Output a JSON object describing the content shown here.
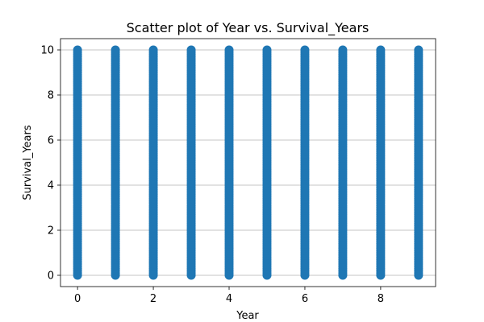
{
  "chart_data": {
    "type": "scatter",
    "title": "Scatter plot of Year vs. Survival_Years",
    "xlabel": "Year",
    "ylabel": "Survival_Years",
    "xlim": [
      -0.45,
      9.45
    ],
    "ylim": [
      -0.5,
      10.5
    ],
    "xticks": [
      0,
      2,
      4,
      6,
      8
    ],
    "xtick_labels": [
      "0",
      "2",
      "4",
      "6",
      "8"
    ],
    "yticks": [
      0,
      2,
      4,
      6,
      8,
      10
    ],
    "ytick_labels": [
      "0",
      "2",
      "4",
      "6",
      "8",
      "10"
    ],
    "grid": "y-only",
    "color": "#1f77b4",
    "x_values": [
      0,
      1,
      2,
      3,
      4,
      5,
      6,
      7,
      8,
      9
    ],
    "y_range": [
      0,
      10
    ]
  }
}
